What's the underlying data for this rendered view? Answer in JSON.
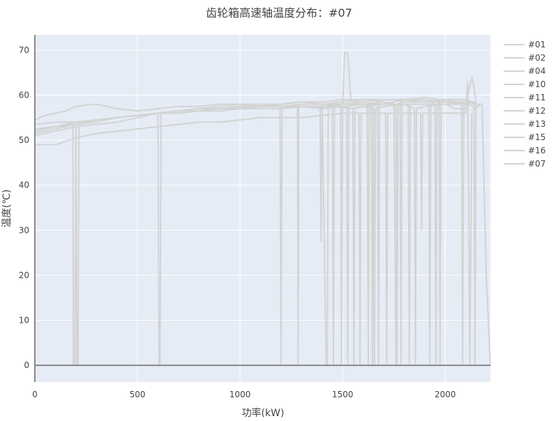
{
  "chart_data": {
    "type": "line",
    "title": "齿轮箱高速轴温度分布：#07",
    "xlabel": "功率(kW)",
    "ylabel": "温度(℃)",
    "xlim": [
      0,
      2220
    ],
    "ylim": [
      -3.7,
      73.4
    ],
    "xticks": [
      0,
      500,
      1000,
      1500,
      2000
    ],
    "yticks": [
      0,
      10,
      20,
      30,
      40,
      50,
      60,
      70
    ],
    "grid": true,
    "legend_position": "right",
    "colors": {
      "background": "#e5ecf6",
      "grid": "#ffffff",
      "series": "#d3d3d3",
      "zeroline": "#888888"
    },
    "series": [
      {
        "name": "#01",
        "x": [
          0,
          50,
          100,
          150,
          200,
          250,
          300,
          350,
          400,
          500,
          600,
          700,
          800,
          900,
          1000,
          1100,
          1200,
          1300,
          1400,
          1500,
          1510,
          1525,
          1540,
          1560,
          1600,
          1700,
          1800,
          1900,
          2000,
          2100,
          2150
        ],
        "y": [
          54.5,
          55.5,
          56,
          56.5,
          57.5,
          57.8,
          58,
          57.5,
          57,
          56.5,
          57,
          57.5,
          57.5,
          58,
          58,
          57.5,
          58,
          58.5,
          58,
          58,
          69.5,
          69.2,
          59,
          58.5,
          58.5,
          58,
          59,
          59,
          58.5,
          58.5,
          58
        ]
      },
      {
        "name": "#02",
        "x": [
          0,
          50,
          100,
          150,
          185,
          188,
          195,
          200,
          300,
          400,
          500,
          600,
          700,
          800,
          900,
          1000,
          1100,
          1200,
          1300,
          1400,
          1500,
          1600,
          1700,
          1750,
          1760,
          1770,
          1800,
          1900,
          2000,
          2100
        ],
        "y": [
          52,
          52.5,
          53,
          53.5,
          54,
          0,
          0,
          54,
          54.5,
          55,
          55.5,
          56,
          56.5,
          57,
          57,
          57.5,
          57.5,
          57.5,
          58,
          58,
          58.5,
          59,
          58.5,
          58,
          0,
          58,
          59,
          58.5,
          59,
          59
        ]
      },
      {
        "name": "#04",
        "x": [
          0,
          100,
          200,
          205,
          210,
          215,
          300,
          400,
          500,
          600,
          605,
          610,
          615,
          700,
          800,
          900,
          1000,
          1100,
          1200,
          1300,
          1400,
          1420,
          1425,
          1430,
          1500,
          1600,
          1700,
          1800,
          1900,
          1950,
          1955,
          1960,
          2000,
          2100
        ],
        "y": [
          51.5,
          52.5,
          53.5,
          0,
          0,
          53.5,
          54.5,
          55,
          55.5,
          56,
          0,
          0,
          56,
          56.5,
          57,
          57,
          57.5,
          57.5,
          57.5,
          58,
          58,
          0,
          0,
          58,
          58,
          58.5,
          58,
          59,
          59,
          58,
          0,
          58,
          59,
          58
        ]
      },
      {
        "name": "#10",
        "x": [
          0,
          100,
          200,
          300,
          400,
          500,
          600,
          700,
          800,
          900,
          1000,
          1100,
          1195,
          1200,
          1205,
          1300,
          1400,
          1500,
          1550,
          1555,
          1560,
          1600,
          1650,
          1655,
          1660,
          1700,
          1800,
          1850,
          1855,
          1860,
          1900,
          2000,
          2050,
          2100
        ],
        "y": [
          51,
          52,
          53,
          53.5,
          54,
          55,
          56,
          56.5,
          57,
          57,
          57.5,
          57.5,
          57.5,
          0,
          57.5,
          57.5,
          57,
          57.5,
          57,
          0,
          57,
          57.5,
          57,
          0,
          57,
          57.5,
          58,
          57,
          0,
          57,
          57.5,
          58,
          57,
          57
        ]
      },
      {
        "name": "#11",
        "x": [
          0,
          100,
          200,
          300,
          400,
          500,
          600,
          700,
          800,
          900,
          1000,
          1100,
          1200,
          1280,
          1283,
          1286,
          1300,
          1400,
          1500,
          1520,
          1525,
          1530,
          1600,
          1700,
          1780,
          1785,
          1790,
          1800,
          1900,
          2000,
          2080,
          2085,
          2090,
          2100
        ],
        "y": [
          52.5,
          53,
          54,
          54.5,
          55,
          55.5,
          56,
          56.5,
          56.5,
          57,
          57.5,
          57.5,
          57.5,
          57.5,
          0,
          57.5,
          57.5,
          57.5,
          57.5,
          57,
          0,
          57,
          57.5,
          58,
          58,
          0,
          58,
          58,
          58,
          58,
          58,
          0,
          58,
          58
        ]
      },
      {
        "name": "#12",
        "x": [
          0,
          100,
          200,
          300,
          400,
          500,
          600,
          700,
          800,
          900,
          1000,
          1100,
          1200,
          1300,
          1390,
          1395,
          1400,
          1500,
          1600,
          1620,
          1625,
          1630,
          1700,
          1800,
          1900,
          1920,
          1925,
          1930,
          2000,
          2100,
          2130,
          2140,
          2150
        ],
        "y": [
          52,
          53,
          53.5,
          54,
          55,
          55.5,
          56,
          56,
          56.5,
          56.5,
          57,
          57,
          57,
          57.5,
          57.5,
          27.5,
          57.5,
          58,
          58,
          58,
          0,
          58,
          58,
          58,
          58,
          58,
          0,
          58,
          58,
          58,
          64,
          62,
          58
        ]
      },
      {
        "name": "#13",
        "x": [
          0,
          100,
          150,
          200,
          300,
          400,
          500,
          600,
          700,
          800,
          900,
          1000,
          1100,
          1200,
          1300,
          1400,
          1490,
          1495,
          1500,
          1600,
          1640,
          1645,
          1650,
          1700,
          1800,
          1820,
          1825,
          1830,
          1900,
          2000,
          2100,
          2150,
          2170
        ],
        "y": [
          51.5,
          52.5,
          53,
          53.5,
          54.5,
          55,
          55.5,
          56,
          56.5,
          57,
          57,
          57,
          57.5,
          57.5,
          57.5,
          57.5,
          57.5,
          0,
          57.5,
          58,
          58,
          0,
          58,
          58,
          58,
          58,
          0,
          58,
          58,
          58,
          58.5,
          57,
          58
        ]
      },
      {
        "name": "#15",
        "x": [
          0,
          100,
          200,
          300,
          400,
          500,
          600,
          700,
          800,
          900,
          1000,
          1100,
          1200,
          1300,
          1400,
          1500,
          1580,
          1585,
          1590,
          1600,
          1700,
          1710,
          1715,
          1720,
          1800,
          1880,
          1885,
          1890,
          1900,
          2000,
          2100,
          2110,
          2120,
          2130
        ],
        "y": [
          49,
          49,
          50.5,
          51.5,
          52,
          52.5,
          53,
          53.5,
          54,
          54,
          54.5,
          55,
          55,
          55,
          55.5,
          56,
          56,
          0,
          56,
          56,
          56,
          56,
          0,
          56,
          56,
          56,
          30,
          56,
          56,
          56,
          56,
          63,
          0,
          56
        ]
      },
      {
        "name": "#16",
        "x": [
          0,
          100,
          200,
          300,
          400,
          500,
          600,
          700,
          800,
          900,
          1000,
          1100,
          1200,
          1300,
          1400,
          1500,
          1600,
          1670,
          1675,
          1680,
          1700,
          1800,
          1900,
          1970,
          1975,
          1980,
          2000,
          2100,
          2150,
          2180,
          2200,
          2220
        ],
        "y": [
          53.5,
          54,
          54,
          54.5,
          55,
          55.5,
          56,
          56.5,
          57,
          57.5,
          58,
          58,
          58,
          58.5,
          58.5,
          59,
          59,
          59,
          0,
          59,
          59,
          59,
          59.5,
          59,
          0,
          59,
          59,
          59,
          58,
          58,
          20,
          0
        ]
      },
      {
        "name": "#07",
        "x": [
          0,
          100,
          200,
          300,
          400,
          500,
          600,
          700,
          800,
          900,
          1000,
          1100,
          1200,
          1300,
          1400,
          1450,
          1455,
          1460,
          1500,
          1600,
          1700,
          1760,
          1765,
          1770,
          1800,
          1900,
          2000,
          2100,
          2140,
          2145,
          2150
        ],
        "y": [
          52,
          53,
          54,
          54.5,
          55,
          55.5,
          56,
          56,
          56.5,
          57,
          57,
          57.5,
          57.5,
          57.5,
          57.5,
          57.5,
          0,
          57.5,
          58,
          58,
          58,
          58,
          0,
          58,
          58.5,
          58.5,
          58.5,
          58.5,
          58.5,
          0,
          58
        ]
      }
    ]
  }
}
